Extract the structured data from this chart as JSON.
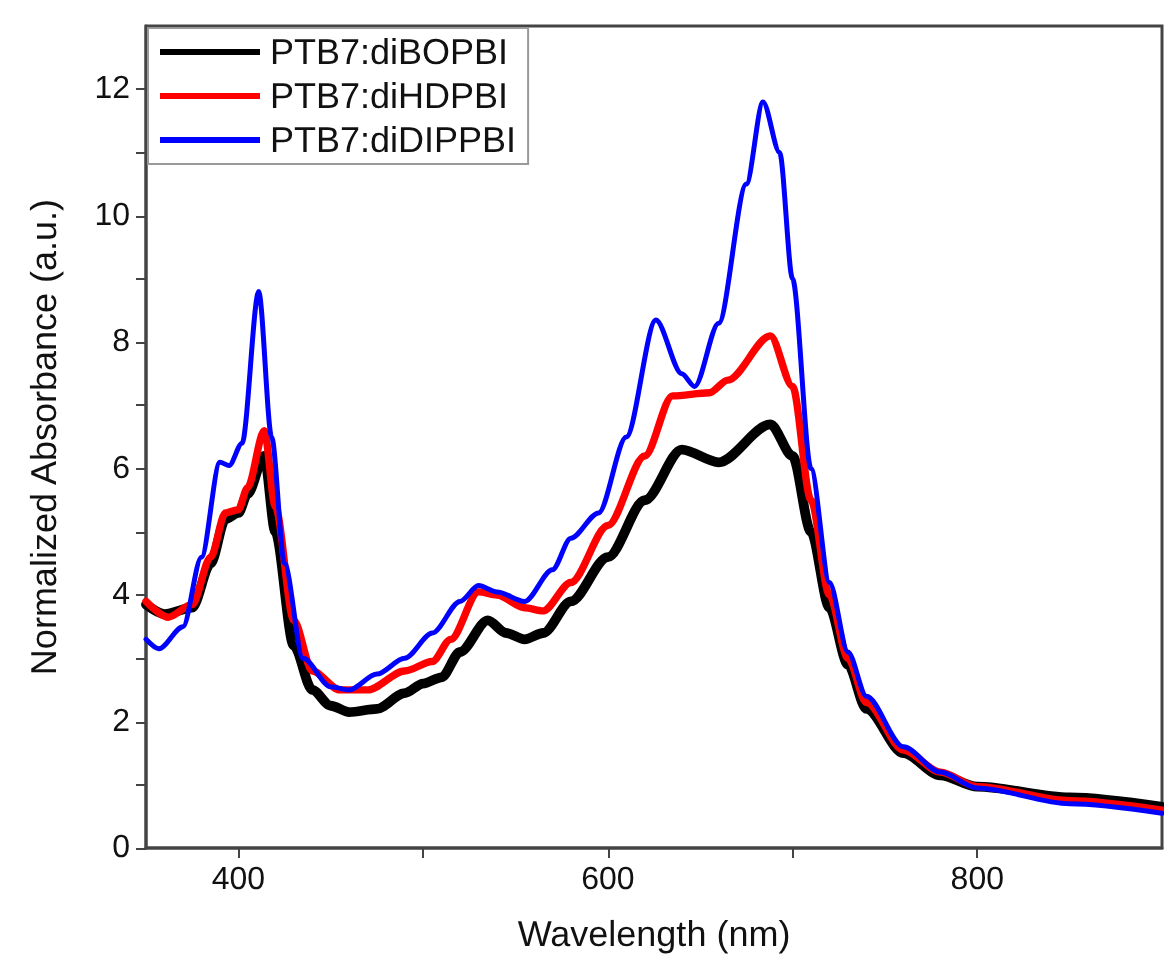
{
  "chart_data": {
    "type": "line",
    "xlabel": "Wavelength (nm)",
    "ylabel": "Normalized Absorbance (a.u.)",
    "xlim": [
      350,
      900
    ],
    "xticks": [
      400,
      {
        "value": 500,
        "label": null
      },
      600,
      {
        "value": 700,
        "label": null
      },
      800
    ],
    "ylim": [
      0,
      13
    ],
    "yticks": [
      0,
      {
        "value": 1,
        "label": null
      },
      2,
      {
        "value": 3,
        "label": null
      },
      4,
      {
        "value": 5,
        "label": null
      },
      6,
      {
        "value": 7,
        "label": null
      },
      8,
      {
        "value": 9,
        "label": null
      },
      10,
      {
        "value": 11,
        "label": null
      },
      12
    ],
    "grid": false,
    "legend": "top left",
    "marker": "none",
    "line_style": "solid",
    "series": [
      {
        "name": "PTB7:diBOPBI",
        "color": "#000000",
        "x": [
          350,
          360,
          375,
          385,
          393,
          400,
          405,
          414,
          420,
          430,
          440,
          450,
          460,
          475,
          490,
          500,
          510,
          520,
          535,
          545,
          555,
          565,
          580,
          600,
          620,
          640,
          660,
          688,
          700,
          710,
          720,
          730,
          740,
          760,
          780,
          800,
          850,
          900
        ],
        "values": [
          3.85,
          3.7,
          3.8,
          4.5,
          5.2,
          5.3,
          5.6,
          6.2,
          5.0,
          3.2,
          2.5,
          2.25,
          2.15,
          2.2,
          2.45,
          2.6,
          2.7,
          3.1,
          3.6,
          3.4,
          3.3,
          3.4,
          3.9,
          4.6,
          5.5,
          6.3,
          6.1,
          6.7,
          6.2,
          5.0,
          3.8,
          2.9,
          2.2,
          1.5,
          1.15,
          0.97,
          0.8,
          0.65
        ]
      },
      {
        "name": "PTB7:diHDPBI",
        "color": "#ff0000",
        "x": [
          350,
          362,
          375,
          385,
          393,
          400,
          405,
          414,
          420,
          430,
          440,
          455,
          470,
          490,
          505,
          515,
          530,
          540,
          555,
          565,
          580,
          600,
          620,
          635,
          655,
          665,
          688,
          700,
          710,
          720,
          730,
          740,
          760,
          780,
          800,
          850,
          900
        ],
        "values": [
          3.9,
          3.65,
          3.85,
          4.6,
          5.3,
          5.35,
          5.7,
          6.6,
          5.4,
          3.6,
          2.8,
          2.5,
          2.5,
          2.8,
          2.95,
          3.3,
          4.05,
          4.0,
          3.8,
          3.75,
          4.2,
          5.1,
          6.2,
          7.15,
          7.2,
          7.4,
          8.1,
          7.3,
          5.5,
          4.0,
          3.0,
          2.3,
          1.55,
          1.2,
          0.97,
          0.75,
          0.6
        ]
      },
      {
        "name": "PTB7:diDIPPBI",
        "color": "#0000ff",
        "x": [
          350,
          357,
          370,
          380,
          390,
          395,
          402,
          411,
          418,
          425,
          435,
          450,
          460,
          475,
          490,
          505,
          520,
          530,
          540,
          555,
          570,
          580,
          595,
          610,
          626,
          640,
          647,
          660,
          675,
          684,
          693,
          700,
          710,
          720,
          730,
          740,
          760,
          780,
          800,
          850,
          900
        ],
        "values": [
          3.3,
          3.15,
          3.5,
          4.6,
          6.1,
          6.05,
          6.4,
          8.8,
          6.5,
          4.5,
          3.0,
          2.55,
          2.5,
          2.75,
          3.0,
          3.4,
          3.9,
          4.15,
          4.05,
          3.9,
          4.4,
          4.9,
          5.3,
          6.5,
          8.35,
          7.5,
          7.3,
          8.3,
          10.5,
          11.8,
          11.0,
          9.0,
          6.0,
          4.2,
          3.1,
          2.4,
          1.6,
          1.2,
          0.95,
          0.7,
          0.55
        ]
      }
    ]
  }
}
